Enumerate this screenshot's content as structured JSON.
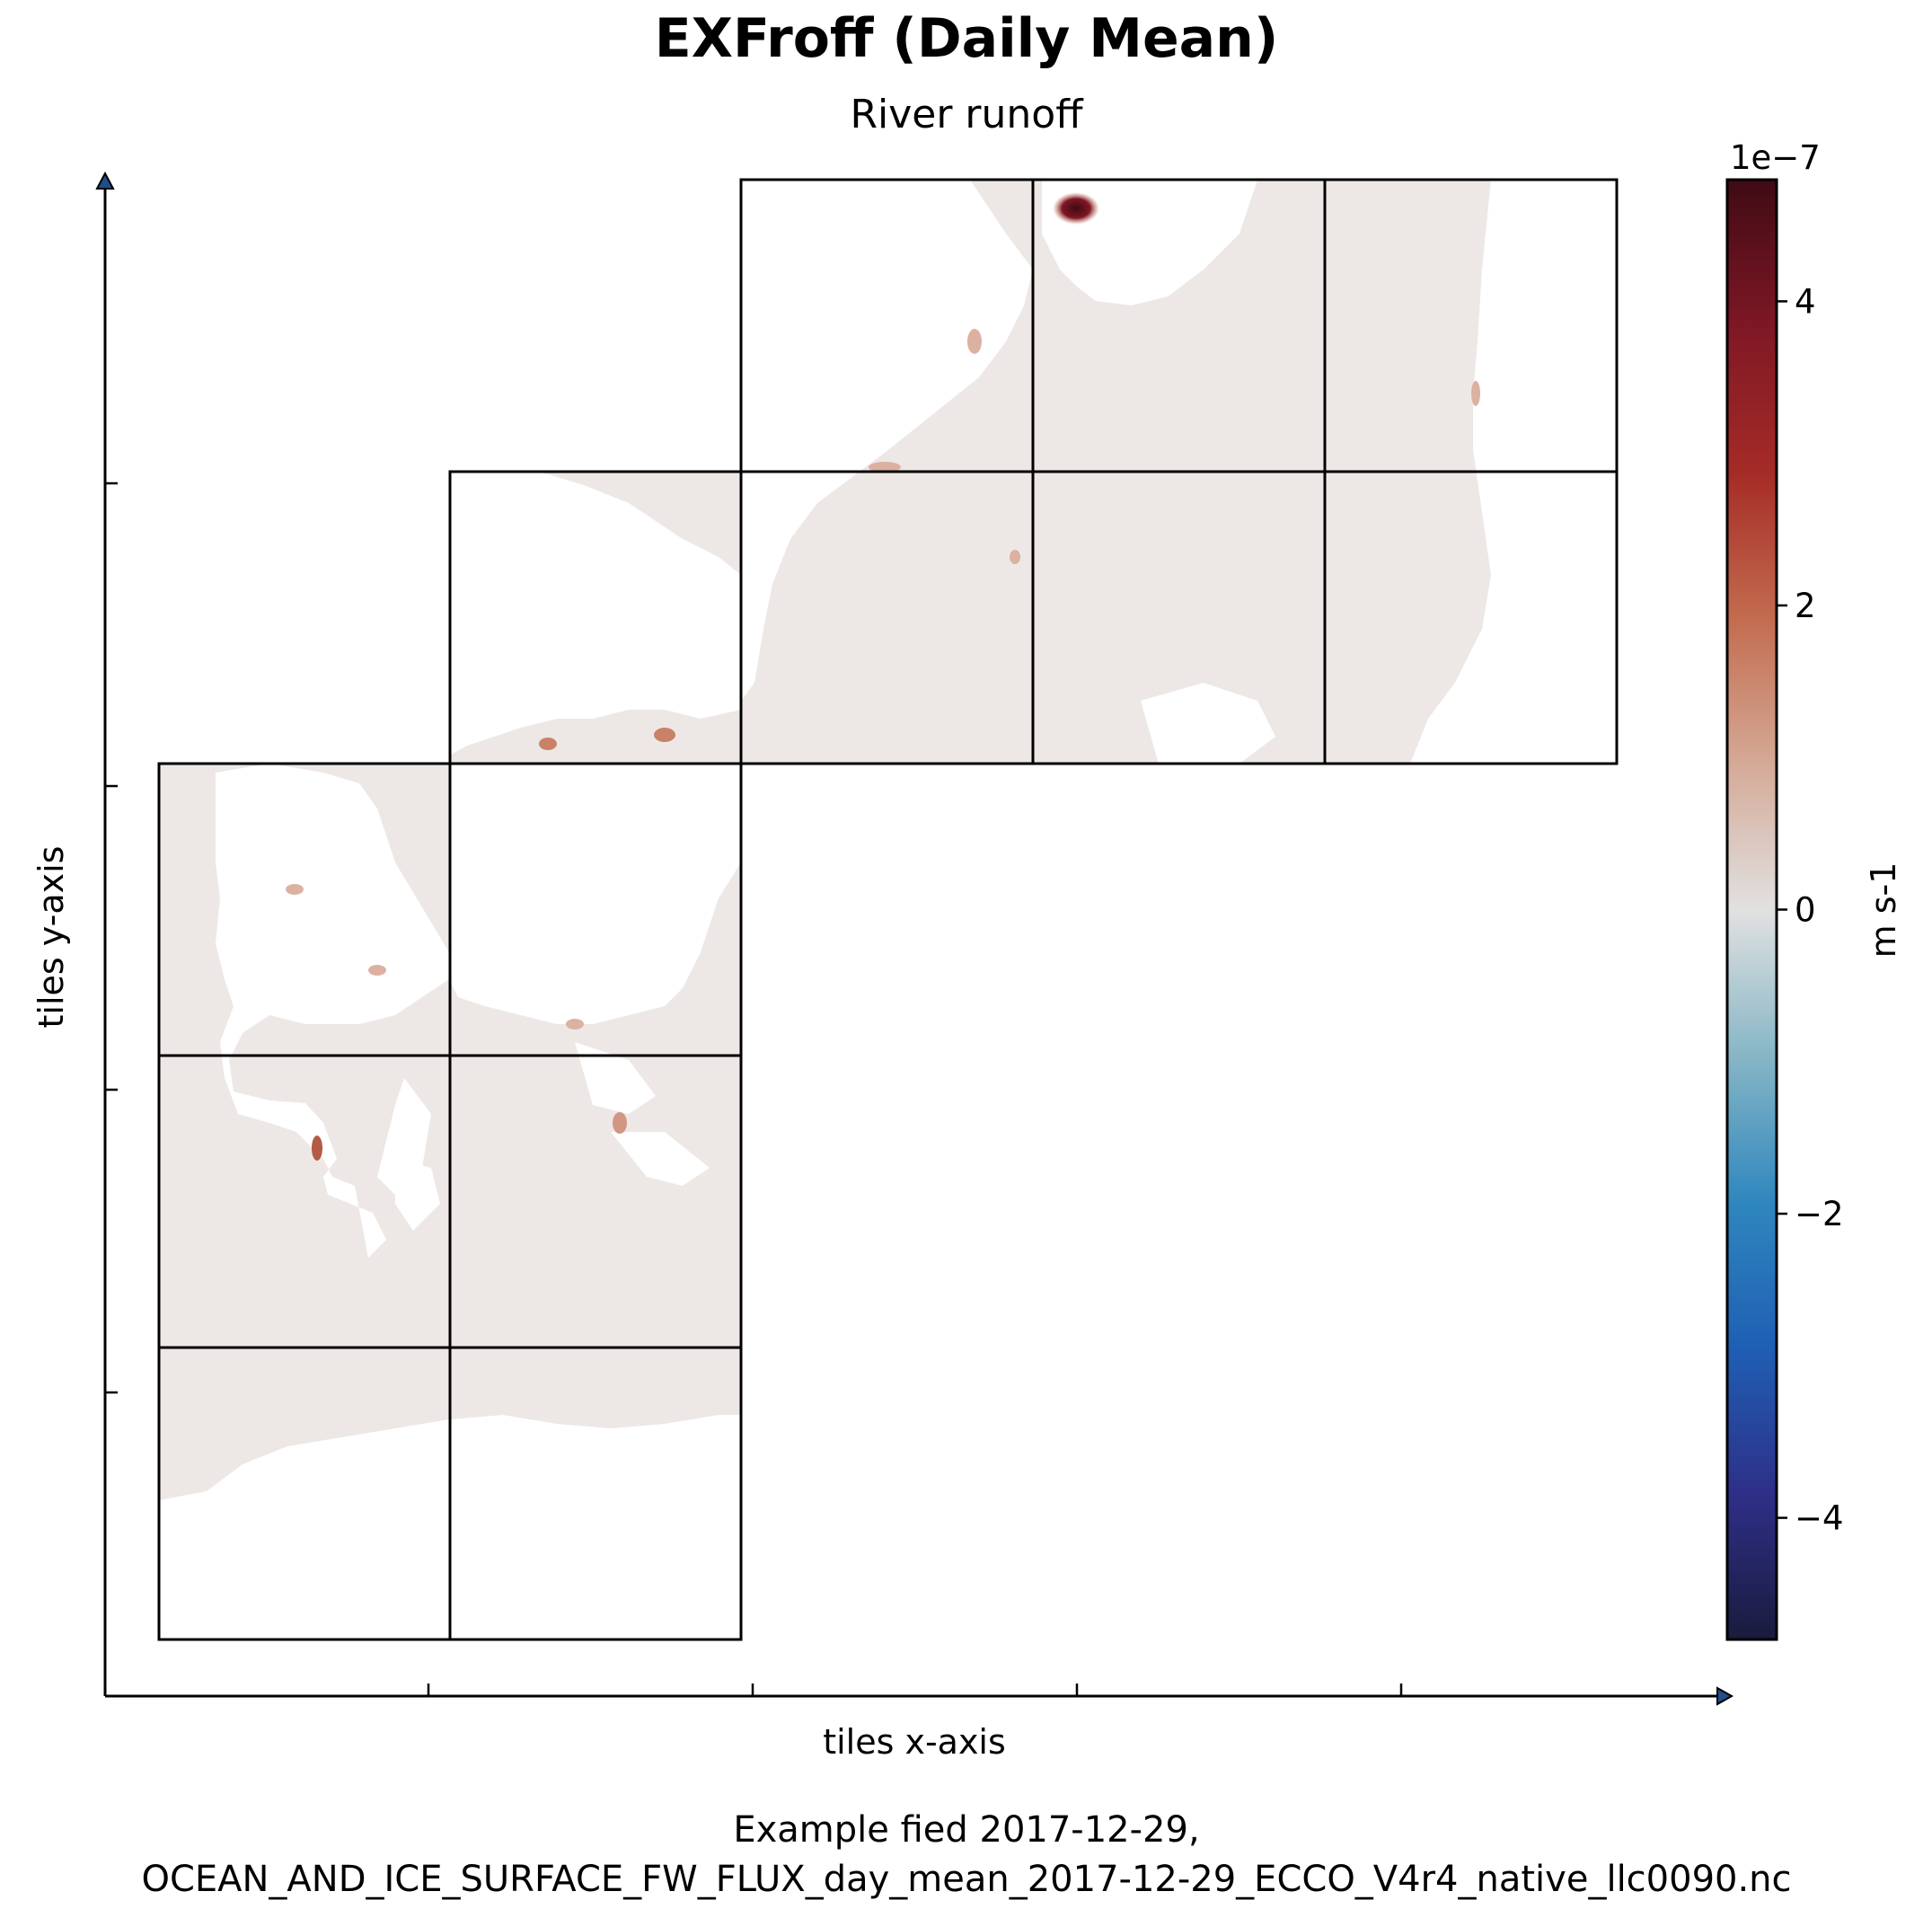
{
  "chart_data": {
    "type": "heatmap",
    "title": "EXFroff (Daily Mean)",
    "subtitle": "River runoff",
    "xlabel": "tiles x-axis",
    "ylabel": "tiles y-axis",
    "colorbar": {
      "label": "m s-1",
      "scale_label": "1e−7",
      "range": [
        -4.8e-07,
        4.8e-07
      ],
      "ticks": [
        -4,
        -2,
        0,
        2,
        4
      ],
      "tick_labels": [
        "−4",
        "−2",
        "0",
        "2",
        "4"
      ],
      "colormap": [
        "#1a1b3d",
        "#2e2f88",
        "#1f5fb4",
        "#2f87be",
        "#87b6c6",
        "#e1e1e1",
        "#d5a996",
        "#c36b4f",
        "#a52b26",
        "#7e1725",
        "#3f0b14"
      ]
    },
    "facet_layout": "LLC90 native tiles: 4x2 columns on lower-left block, 2x4 on upper-right block",
    "features": [
      {
        "name": "background-runoff",
        "value": 0.0
      },
      {
        "name": "arctic-river-mouth-max",
        "value": 4.8e-07
      },
      {
        "name": "coastal-runoff-hotspots",
        "value": 6e-08
      }
    ],
    "grid": false,
    "legend": "colorbar-right"
  },
  "footer": {
    "line1": "Example fied 2017-12-29,",
    "line2": "OCEAN_AND_ICE_SURFACE_FW_FLUX_day_mean_2017-12-29_ECCO_V4r4_native_llc0090.nc"
  },
  "colors": {
    "ocean": "#ede8e6",
    "land": "#ffffff",
    "hotspot_low": "#dcb1a2",
    "hotspot_mid": "#c98268",
    "hotspot_high": "#3f0b14",
    "axis_arrow": "#1f4f8a"
  }
}
